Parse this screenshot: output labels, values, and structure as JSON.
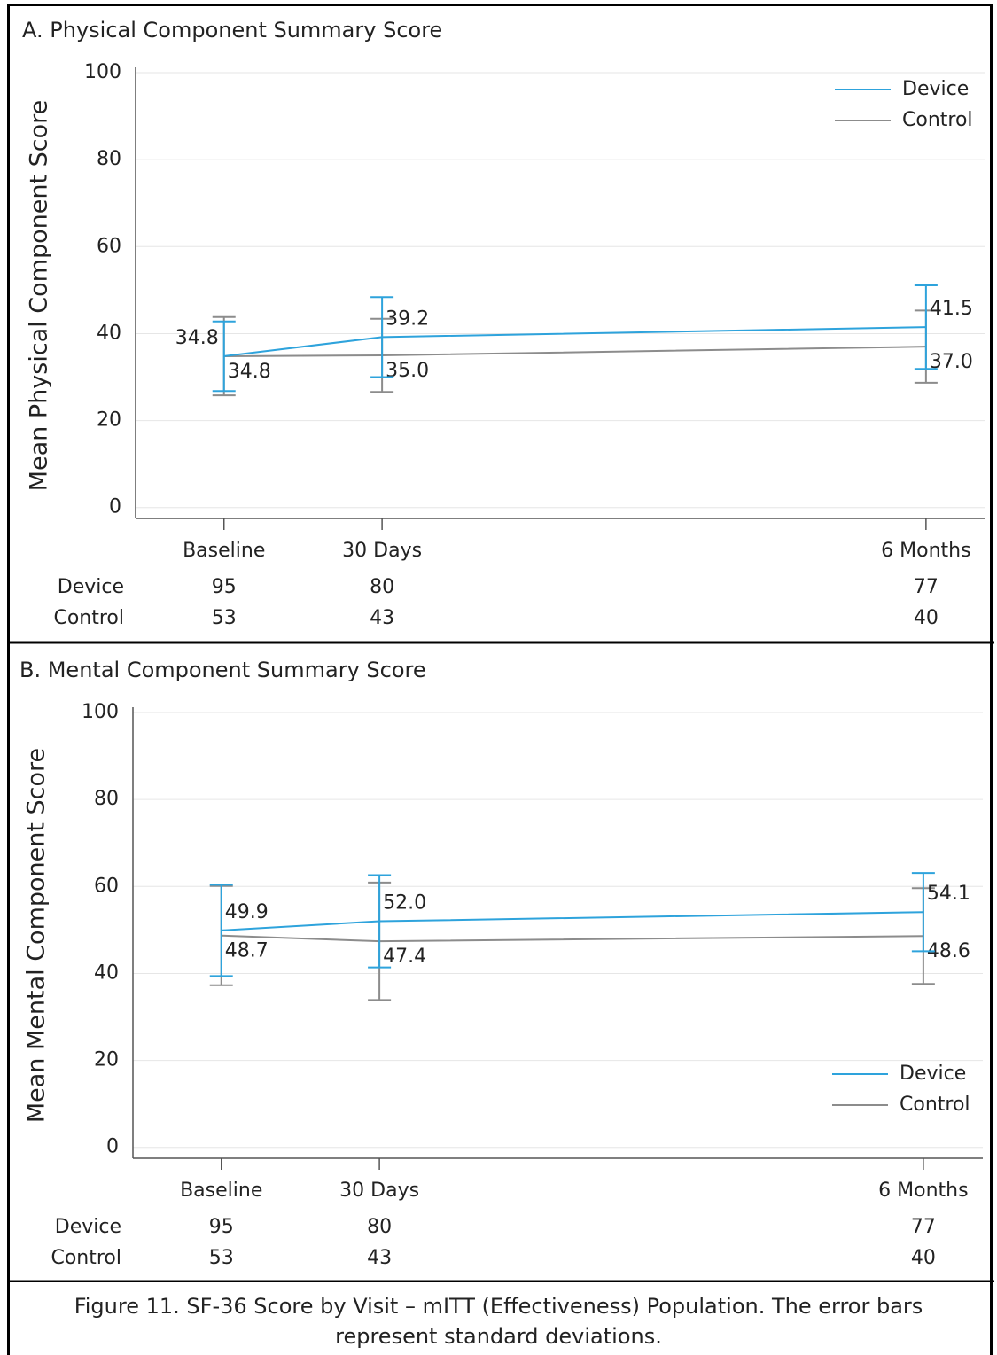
{
  "chart_data": [
    {
      "type": "line",
      "title": "A. Physical Component Summary Score",
      "y_label": "Mean Physical Component Score",
      "categories": [
        "Baseline",
        "30 Days",
        "6 Months"
      ],
      "series": [
        {
          "name": "Device",
          "color": "#2ea3dc",
          "values": [
            34.8,
            39.2,
            41.5
          ],
          "value_labels": [
            "34.8",
            "39.2",
            "41.5"
          ],
          "errors": [
            8.0,
            9.2,
            9.6
          ]
        },
        {
          "name": "Control",
          "color": "#8c8c8c",
          "values": [
            34.8,
            35.0,
            37.0
          ],
          "value_labels": [
            "34.8",
            "35.0",
            "37.0"
          ],
          "errors": [
            9.0,
            8.4,
            8.3
          ]
        }
      ],
      "ylim": [
        -2.5,
        100
      ],
      "yticks": [
        0,
        20,
        40,
        60,
        80,
        100
      ],
      "grid": true,
      "legend": "upper right",
      "counts": {
        "row_labels": [
          "Device",
          "Control"
        ],
        "rows": [
          [
            "95",
            "80",
            "77"
          ],
          [
            "53",
            "43",
            "40"
          ]
        ]
      }
    },
    {
      "type": "line",
      "title": "B. Mental Component Summary Score",
      "y_label": "Mean Mental Component Score",
      "categories": [
        "Baseline",
        "30 Days",
        "6 Months"
      ],
      "series": [
        {
          "name": "Device",
          "color": "#2ea3dc",
          "values": [
            49.9,
            52.0,
            54.1
          ],
          "value_labels": [
            "49.9",
            "52.0",
            "54.1"
          ],
          "errors": [
            10.5,
            10.6,
            9.0
          ]
        },
        {
          "name": "Control",
          "color": "#8c8c8c",
          "values": [
            48.7,
            47.4,
            48.6
          ],
          "value_labels": [
            "48.7",
            "47.4",
            "48.6"
          ],
          "errors": [
            11.4,
            13.5,
            11.0
          ]
        }
      ],
      "ylim": [
        -2.5,
        100
      ],
      "yticks": [
        0,
        20,
        40,
        60,
        80,
        100
      ],
      "grid": true,
      "legend": "lower right",
      "counts": {
        "row_labels": [
          "Device",
          "Control"
        ],
        "rows": [
          [
            "95",
            "80",
            "77"
          ],
          [
            "53",
            "43",
            "40"
          ]
        ]
      }
    }
  ],
  "caption": "Figure 11. SF-36 Score by Visit – mITT (Effectiveness) Population. The error bars represent standard deviations."
}
